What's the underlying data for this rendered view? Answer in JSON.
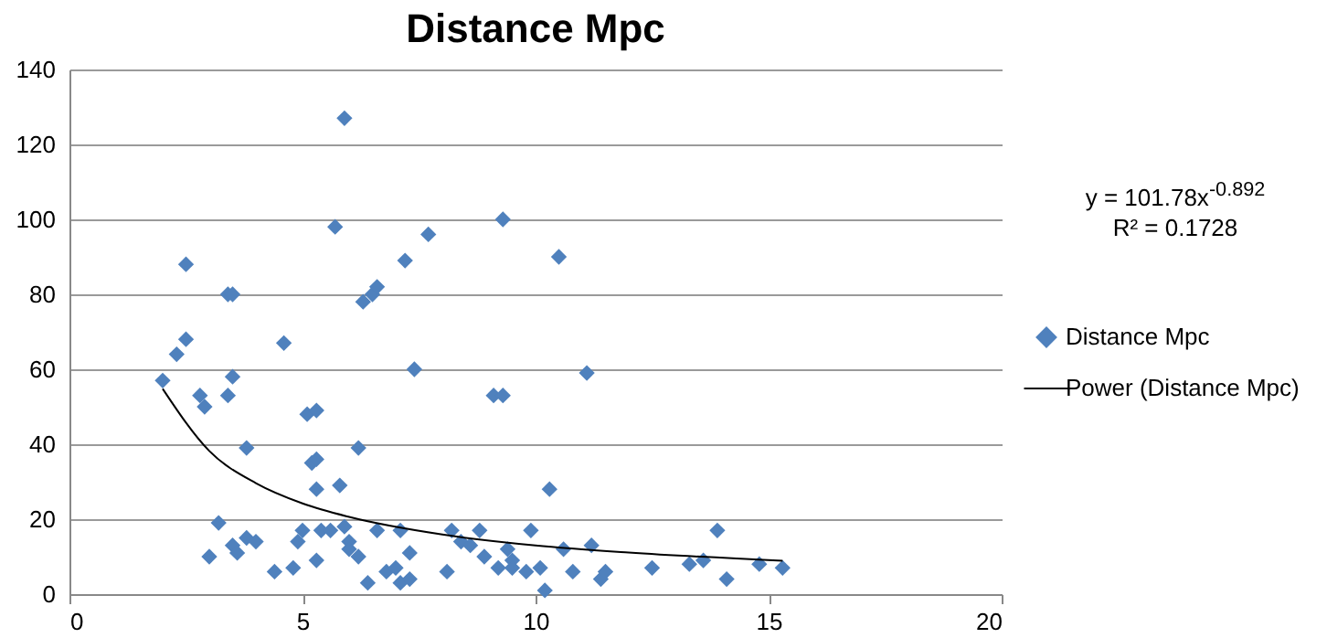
{
  "chart_data": {
    "type": "scatter",
    "title": "Distance Mpc",
    "annotations": [
      "y = 101.78x$^{-0.892}$",
      "R² = 0.1728"
    ],
    "xlim": [
      0,
      20
    ],
    "xticks": [
      0,
      5,
      10,
      15,
      20
    ],
    "ylim": [
      0,
      140
    ],
    "yticks": [
      0,
      20,
      40,
      60,
      80,
      100,
      120,
      140
    ],
    "grid": "y",
    "legend": "right",
    "series": [
      {
        "name": "Distance Mpc",
        "marker": "diamond",
        "color": "#4f81bd",
        "x": [
          2.0,
          2.3,
          2.5,
          2.5,
          2.8,
          2.9,
          3.0,
          3.2,
          3.4,
          3.5,
          3.5,
          3.4,
          3.5,
          3.6,
          3.8,
          3.8,
          4.0,
          4.4,
          4.6,
          4.8,
          4.9,
          5.0,
          5.1,
          5.2,
          5.3,
          5.3,
          5.3,
          5.4,
          5.3,
          5.6,
          5.7,
          5.9,
          5.8,
          5.9,
          6.0,
          6.0,
          6.2,
          6.2,
          6.3,
          6.4,
          6.5,
          6.6,
          6.6,
          6.8,
          7.0,
          7.1,
          7.1,
          7.2,
          7.3,
          7.3,
          7.4,
          7.7,
          8.1,
          8.2,
          8.4,
          8.6,
          8.8,
          8.9,
          9.1,
          9.2,
          9.3,
          9.3,
          9.4,
          9.5,
          9.5,
          9.8,
          9.9,
          10.1,
          10.2,
          10.3,
          10.5,
          10.6,
          10.8,
          11.1,
          11.2,
          11.4,
          11.5,
          12.5,
          13.3,
          13.6,
          13.9,
          14.1,
          14.8,
          15.3
        ],
        "values": [
          57,
          64,
          68,
          88,
          53,
          50,
          10,
          19,
          80,
          80,
          58,
          53,
          13,
          11,
          15,
          39,
          14,
          6,
          67,
          7,
          14,
          17,
          48,
          35,
          36,
          49,
          28,
          17,
          9,
          17,
          98,
          127,
          29,
          18,
          14,
          12,
          39,
          10,
          78,
          3,
          80,
          82,
          17,
          6,
          7,
          17,
          3,
          89,
          11,
          4,
          60,
          96,
          6,
          17,
          14,
          13,
          17,
          10,
          53,
          7,
          100,
          53,
          12,
          9,
          7,
          6,
          17,
          7,
          1,
          28,
          90,
          12,
          6,
          59,
          13,
          4,
          6,
          7,
          8,
          9,
          17,
          4,
          8,
          7
        ]
      },
      {
        "name": "Power (Distance Mpc)",
        "type": "line",
        "color": "#000000",
        "x": [
          2,
          3,
          4,
          5,
          6,
          8,
          10,
          12,
          15.3
        ],
        "values": [
          54.8,
          38.2,
          29.6,
          24.2,
          20.6,
          15.9,
          13.0,
          11.1,
          8.9
        ]
      }
    ]
  }
}
